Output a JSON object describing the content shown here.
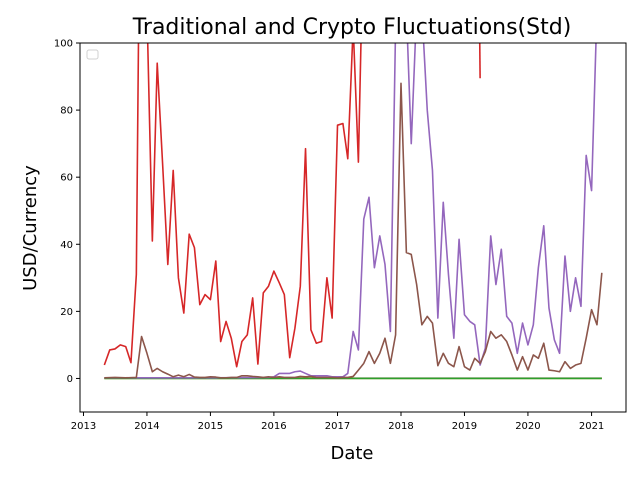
{
  "chart_data": {
    "type": "line",
    "title": "Traditional and Crypto Fluctuations(Std)",
    "xlabel": "Date",
    "ylabel": "USD/Currency",
    "xlim": [
      "2012-12-12",
      "2021-07-18"
    ],
    "ylim": [
      -10,
      100
    ],
    "x_ticks": [
      "2013",
      "2014",
      "2015",
      "2016",
      "2017",
      "2018",
      "2019",
      "2020",
      "2021"
    ],
    "y_ticks": [
      0,
      20,
      40,
      60,
      80,
      100
    ],
    "grid": false,
    "legend": "top-left (empty)",
    "series": [
      {
        "color": "#1f77b4",
        "points": [
          [
            "2013-05-01",
            0.1
          ],
          [
            "2014-06-01",
            0.1
          ],
          [
            "2016-01-01",
            0.1
          ],
          [
            "2018-01-01",
            0.1
          ],
          [
            "2021-03-01",
            0.1
          ]
        ]
      },
      {
        "color": "#ff7f0e",
        "points": [
          [
            "2013-05-01",
            0.05
          ],
          [
            "2016-01-01",
            0.05
          ],
          [
            "2021-03-01",
            0.05
          ]
        ]
      },
      {
        "color": "#2ca02c",
        "points": [
          [
            "2013-05-01",
            0
          ],
          [
            "2015-01-01",
            0
          ],
          [
            "2017-01-01",
            0
          ],
          [
            "2019-01-01",
            0
          ],
          [
            "2021-03-01",
            0
          ]
        ]
      },
      {
        "color": "#d62728",
        "points": [
          [
            "2013-05-01",
            4
          ],
          [
            "2013-06-01",
            8.5
          ],
          [
            "2013-07-01",
            8.8
          ],
          [
            "2013-08-01",
            10
          ],
          [
            "2013-09-01",
            9.5
          ],
          [
            "2013-10-01",
            4.7
          ],
          [
            "2013-11-01",
            31
          ],
          [
            "2013-11-15",
            110
          ],
          [
            "2014-01-01",
            110
          ],
          [
            "2014-02-01",
            41
          ],
          [
            "2014-03-01",
            94
          ],
          [
            "2014-04-01",
            64
          ],
          [
            "2014-05-01",
            34
          ],
          [
            "2014-06-01",
            62
          ],
          [
            "2014-07-01",
            30
          ],
          [
            "2014-08-01",
            19.5
          ],
          [
            "2014-09-01",
            43
          ],
          [
            "2014-10-01",
            39
          ],
          [
            "2014-11-01",
            22
          ],
          [
            "2014-12-01",
            25
          ],
          [
            "2015-01-01",
            23.5
          ],
          [
            "2015-02-01",
            35
          ],
          [
            "2015-03-01",
            11
          ],
          [
            "2015-04-01",
            17
          ],
          [
            "2015-05-01",
            12
          ],
          [
            "2015-06-01",
            3.5
          ],
          [
            "2015-07-01",
            11
          ],
          [
            "2015-08-01",
            13
          ],
          [
            "2015-09-01",
            24
          ],
          [
            "2015-10-01",
            4.3
          ],
          [
            "2015-11-01",
            25.5
          ],
          [
            "2015-12-01",
            27.5
          ],
          [
            "2016-01-01",
            32
          ],
          [
            "2016-02-01",
            28.5
          ],
          [
            "2016-03-01",
            25
          ],
          [
            "2016-04-01",
            6.2
          ],
          [
            "2016-05-01",
            15
          ],
          [
            "2016-06-01",
            27.5
          ],
          [
            "2016-07-01",
            68.5
          ],
          [
            "2016-08-01",
            14.5
          ],
          [
            "2016-09-01",
            10.5
          ],
          [
            "2016-10-01",
            11
          ],
          [
            "2016-11-01",
            30
          ],
          [
            "2016-12-01",
            18
          ],
          [
            "2017-01-01",
            75.5
          ],
          [
            "2017-02-01",
            76
          ],
          [
            "2017-03-01",
            65.5
          ],
          [
            "2017-04-01",
            105
          ],
          [
            "2017-05-01",
            64.5
          ],
          [
            "2017-05-20",
            110
          ]
        ]
      },
      {
        "color": "#d62728",
        "points": [
          [
            "2019-03-28",
            110
          ],
          [
            "2019-04-01",
            89.5
          ]
        ]
      },
      {
        "color": "#9467bd",
        "points": [
          [
            "2013-05-01",
            0.2
          ],
          [
            "2014-01-01",
            0.2
          ],
          [
            "2015-01-01",
            0.2
          ],
          [
            "2015-12-01",
            0.3
          ],
          [
            "2016-01-01",
            0.5
          ],
          [
            "2016-02-01",
            1.5
          ],
          [
            "2016-03-01",
            1.5
          ],
          [
            "2016-04-01",
            1.5
          ],
          [
            "2016-05-01",
            2
          ],
          [
            "2016-06-01",
            2.2
          ],
          [
            "2016-07-01",
            1.5
          ],
          [
            "2016-08-01",
            0.8
          ],
          [
            "2016-09-01",
            0.8
          ],
          [
            "2016-10-01",
            0.8
          ],
          [
            "2016-11-01",
            0.8
          ],
          [
            "2016-12-01",
            0.5
          ],
          [
            "2017-01-01",
            0.5
          ],
          [
            "2017-02-01",
            0.5
          ],
          [
            "2017-03-01",
            1.5
          ],
          [
            "2017-04-01",
            14
          ],
          [
            "2017-05-01",
            8.5
          ],
          [
            "2017-06-01",
            47.5
          ],
          [
            "2017-07-01",
            54
          ],
          [
            "2017-08-01",
            33
          ],
          [
            "2017-09-01",
            42.5
          ],
          [
            "2017-10-01",
            34
          ],
          [
            "2017-11-01",
            14
          ],
          [
            "2017-12-01",
            105
          ],
          [
            "2018-01-01",
            110
          ],
          [
            "2018-02-01",
            110
          ],
          [
            "2018-03-01",
            70
          ],
          [
            "2018-04-01",
            110
          ],
          [
            "2018-05-01",
            110
          ],
          [
            "2018-06-01",
            80
          ],
          [
            "2018-07-01",
            62
          ],
          [
            "2018-08-01",
            18
          ],
          [
            "2018-09-01",
            52.5
          ],
          [
            "2018-10-01",
            31
          ],
          [
            "2018-11-01",
            12
          ],
          [
            "2018-12-01",
            41.5
          ],
          [
            "2019-01-01",
            19
          ],
          [
            "2019-02-01",
            17
          ],
          [
            "2019-03-01",
            16
          ],
          [
            "2019-04-01",
            4
          ],
          [
            "2019-05-01",
            9
          ],
          [
            "2019-06-01",
            42.5
          ],
          [
            "2019-07-01",
            28
          ],
          [
            "2019-08-01",
            38.5
          ],
          [
            "2019-09-01",
            18.5
          ],
          [
            "2019-10-01",
            16.5
          ],
          [
            "2019-11-01",
            7.5
          ],
          [
            "2019-12-01",
            16.5
          ],
          [
            "2020-01-01",
            10
          ],
          [
            "2020-02-01",
            16
          ],
          [
            "2020-03-01",
            33
          ],
          [
            "2020-04-01",
            45.5
          ],
          [
            "2020-05-01",
            21
          ],
          [
            "2020-06-01",
            11.5
          ],
          [
            "2020-07-01",
            7.5
          ],
          [
            "2020-08-01",
            36.5
          ],
          [
            "2020-09-01",
            20
          ],
          [
            "2020-10-01",
            30
          ],
          [
            "2020-11-01",
            21.5
          ],
          [
            "2020-12-01",
            66.5
          ],
          [
            "2021-01-01",
            56
          ],
          [
            "2021-02-01",
            110
          ]
        ]
      },
      {
        "color": "#8c564b",
        "points": [
          [
            "2013-05-01",
            0.2
          ],
          [
            "2013-07-01",
            0.3
          ],
          [
            "2013-09-01",
            0.2
          ],
          [
            "2013-11-01",
            0.3
          ],
          [
            "2013-12-01",
            12.5
          ],
          [
            "2014-01-01",
            7.5
          ],
          [
            "2014-02-01",
            2
          ],
          [
            "2014-03-01",
            3
          ],
          [
            "2014-04-01",
            2
          ],
          [
            "2014-05-01",
            1.3
          ],
          [
            "2014-06-01",
            0.5
          ],
          [
            "2014-07-01",
            1
          ],
          [
            "2014-08-01",
            0.5
          ],
          [
            "2014-09-01",
            1.2
          ],
          [
            "2014-10-01",
            0.4
          ],
          [
            "2014-11-01",
            0.3
          ],
          [
            "2014-12-01",
            0.3
          ],
          [
            "2015-01-01",
            0.5
          ],
          [
            "2015-02-01",
            0.4
          ],
          [
            "2015-03-01",
            0.2
          ],
          [
            "2015-04-01",
            0.2
          ],
          [
            "2015-05-01",
            0.3
          ],
          [
            "2015-06-01",
            0.3
          ],
          [
            "2015-07-01",
            0.8
          ],
          [
            "2015-08-01",
            0.8
          ],
          [
            "2015-09-01",
            0.6
          ],
          [
            "2015-10-01",
            0.5
          ],
          [
            "2015-11-01",
            0.3
          ],
          [
            "2015-12-01",
            0.5
          ],
          [
            "2016-01-01",
            0.3
          ],
          [
            "2016-02-01",
            0.5
          ],
          [
            "2016-03-01",
            0.3
          ],
          [
            "2016-04-01",
            0.3
          ],
          [
            "2016-05-01",
            0.3
          ],
          [
            "2016-06-01",
            0.6
          ],
          [
            "2016-07-01",
            0.5
          ],
          [
            "2016-08-01",
            0.6
          ],
          [
            "2016-09-01",
            0.3
          ],
          [
            "2016-10-01",
            0.3
          ],
          [
            "2016-11-01",
            0.3
          ],
          [
            "2016-12-01",
            0.3
          ],
          [
            "2017-01-01",
            0.2
          ],
          [
            "2017-02-01",
            0.3
          ],
          [
            "2017-03-01",
            0.3
          ],
          [
            "2017-04-01",
            0.6
          ],
          [
            "2017-05-01",
            2.5
          ],
          [
            "2017-06-01",
            4.5
          ],
          [
            "2017-07-01",
            8
          ],
          [
            "2017-08-01",
            4.5
          ],
          [
            "2017-09-01",
            7.5
          ],
          [
            "2017-10-01",
            12
          ],
          [
            "2017-11-01",
            4.5
          ],
          [
            "2017-12-01",
            13
          ],
          [
            "2018-01-01",
            88
          ],
          [
            "2018-02-01",
            37.5
          ],
          [
            "2018-03-01",
            37
          ],
          [
            "2018-04-01",
            28
          ],
          [
            "2018-05-01",
            16
          ],
          [
            "2018-06-01",
            18.5
          ],
          [
            "2018-07-01",
            16.5
          ],
          [
            "2018-08-01",
            3.8
          ],
          [
            "2018-09-01",
            7.5
          ],
          [
            "2018-10-01",
            4.5
          ],
          [
            "2018-11-01",
            3.5
          ],
          [
            "2018-12-01",
            9.5
          ],
          [
            "2019-01-01",
            3.5
          ],
          [
            "2019-02-01",
            2.5
          ],
          [
            "2019-03-01",
            6
          ],
          [
            "2019-04-01",
            4.5
          ],
          [
            "2019-05-01",
            8
          ],
          [
            "2019-06-01",
            14
          ],
          [
            "2019-07-01",
            12
          ],
          [
            "2019-08-01",
            13
          ],
          [
            "2019-09-01",
            11
          ],
          [
            "2019-10-01",
            7
          ],
          [
            "2019-11-01",
            2.5
          ],
          [
            "2019-12-01",
            6.5
          ],
          [
            "2020-01-01",
            2.5
          ],
          [
            "2020-02-01",
            7
          ],
          [
            "2020-03-01",
            6
          ],
          [
            "2020-04-01",
            10.5
          ],
          [
            "2020-05-01",
            2.5
          ],
          [
            "2020-06-01",
            2.3
          ],
          [
            "2020-07-01",
            2
          ],
          [
            "2020-08-01",
            5
          ],
          [
            "2020-09-01",
            3
          ],
          [
            "2020-10-01",
            4
          ],
          [
            "2020-11-01",
            4.5
          ],
          [
            "2020-12-01",
            12
          ],
          [
            "2021-01-01",
            20.5
          ],
          [
            "2021-02-01",
            16
          ],
          [
            "2021-03-01",
            31.5
          ]
        ]
      }
    ]
  }
}
